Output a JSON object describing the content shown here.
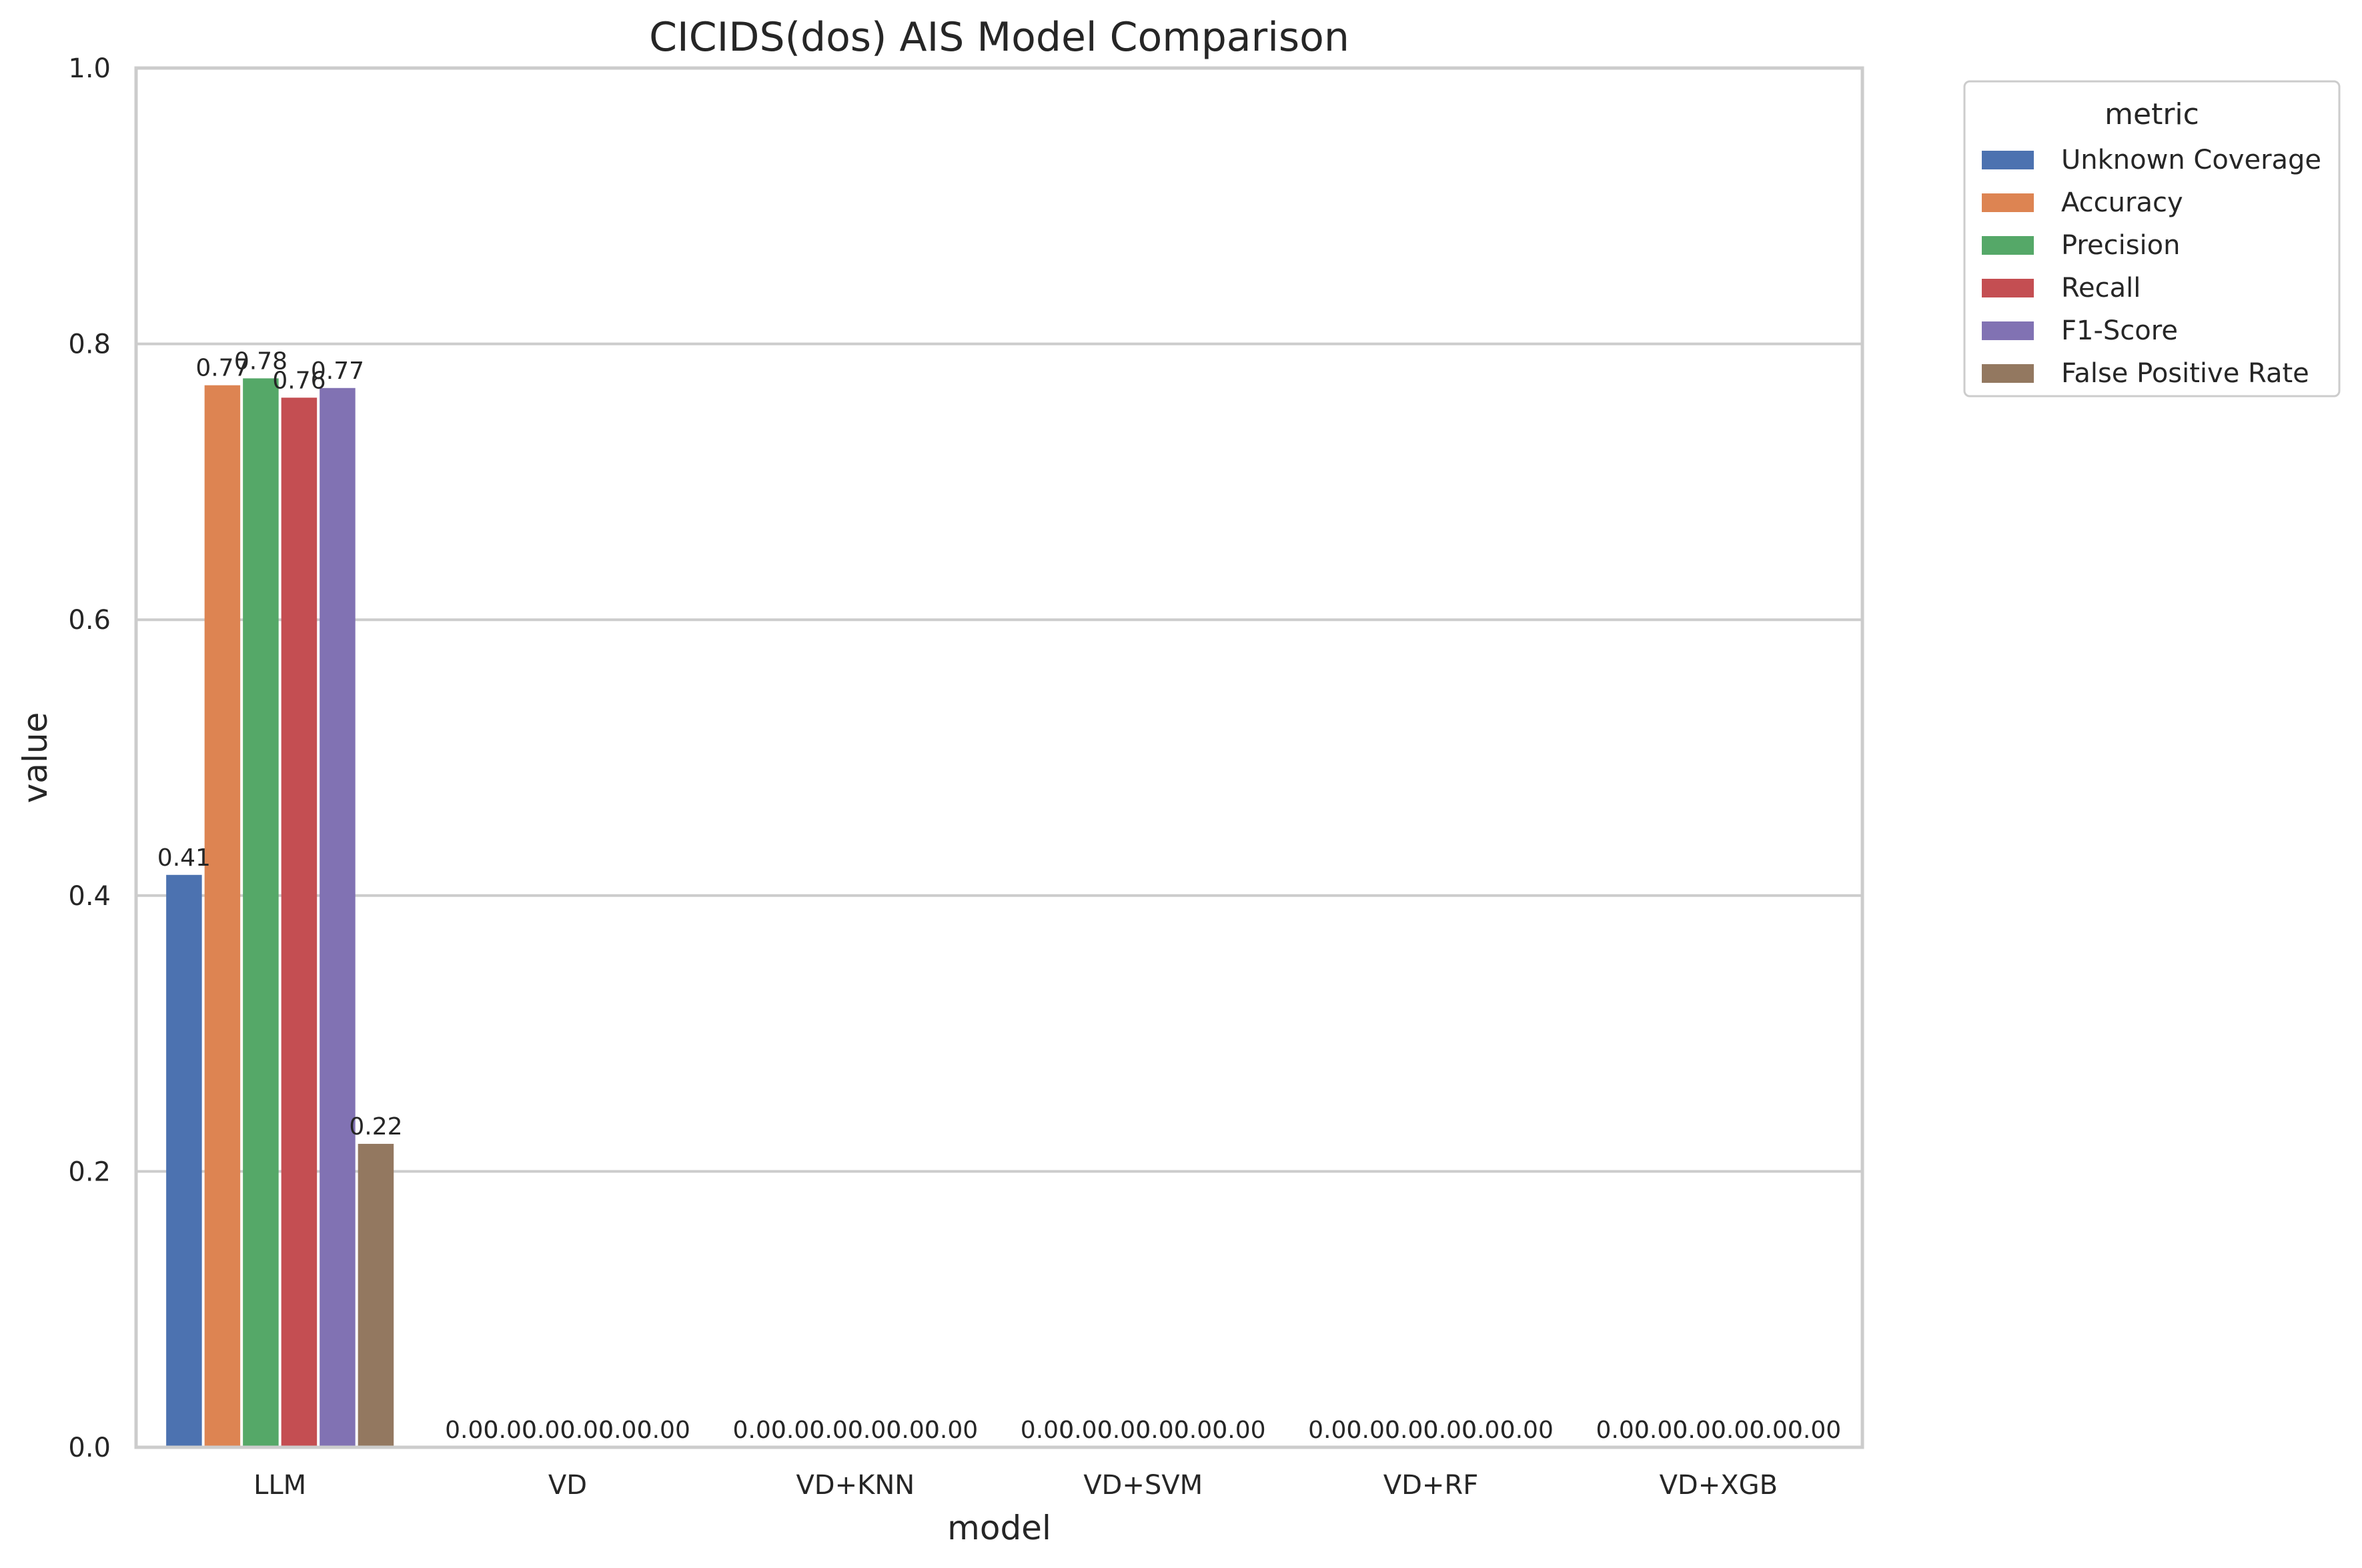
{
  "chart_data": {
    "type": "bar",
    "title": "CICIDS(dos) AIS Model Comparison",
    "xlabel": "model",
    "ylabel": "value",
    "ylim": [
      0,
      1.0
    ],
    "yticks": [
      "0.0",
      "0.2",
      "0.4",
      "0.6",
      "0.8",
      "1.0"
    ],
    "grid": "horizontal",
    "legend_title": "metric",
    "legend_position": "outside-top-right",
    "categories": [
      "LLM",
      "VD",
      "VD+KNN",
      "VD+SVM",
      "VD+RF",
      "VD+XGB"
    ],
    "series": [
      {
        "name": "Unknown Coverage",
        "color": "#4c72b0",
        "values": [
          0.415,
          0,
          0,
          0,
          0,
          0
        ]
      },
      {
        "name": "Accuracy",
        "color": "#dd8452",
        "values": [
          0.77,
          0,
          0,
          0,
          0,
          0
        ]
      },
      {
        "name": "Precision",
        "color": "#55a868",
        "values": [
          0.775,
          0,
          0,
          0,
          0,
          0
        ]
      },
      {
        "name": "Recall",
        "color": "#c44e52",
        "values": [
          0.761,
          0,
          0,
          0,
          0,
          0
        ]
      },
      {
        "name": "F1-Score",
        "color": "#8172b3",
        "values": [
          0.768,
          0,
          0,
          0,
          0,
          0
        ]
      },
      {
        "name": "False Positive Rate",
        "color": "#937860",
        "values": [
          0.22,
          0,
          0,
          0,
          0,
          0
        ]
      }
    ],
    "data_labels": [
      [
        "0.41",
        "0.77",
        "0.78",
        "0.76",
        "0.77",
        "0.22"
      ],
      [
        "0.00",
        "0.00",
        "0.00",
        "0.00",
        "0.00",
        "0.00"
      ],
      [
        "0.00",
        "0.00",
        "0.00",
        "0.00",
        "0.00",
        "0.00"
      ],
      [
        "0.00",
        "0.00",
        "0.00",
        "0.00",
        "0.00",
        "0.00"
      ],
      [
        "0.00",
        "0.00",
        "0.00",
        "0.00",
        "0.00",
        "0.00"
      ],
      [
        "0.00",
        "0.00",
        "0.00",
        "0.00",
        "0.00",
        "0.00"
      ]
    ]
  }
}
